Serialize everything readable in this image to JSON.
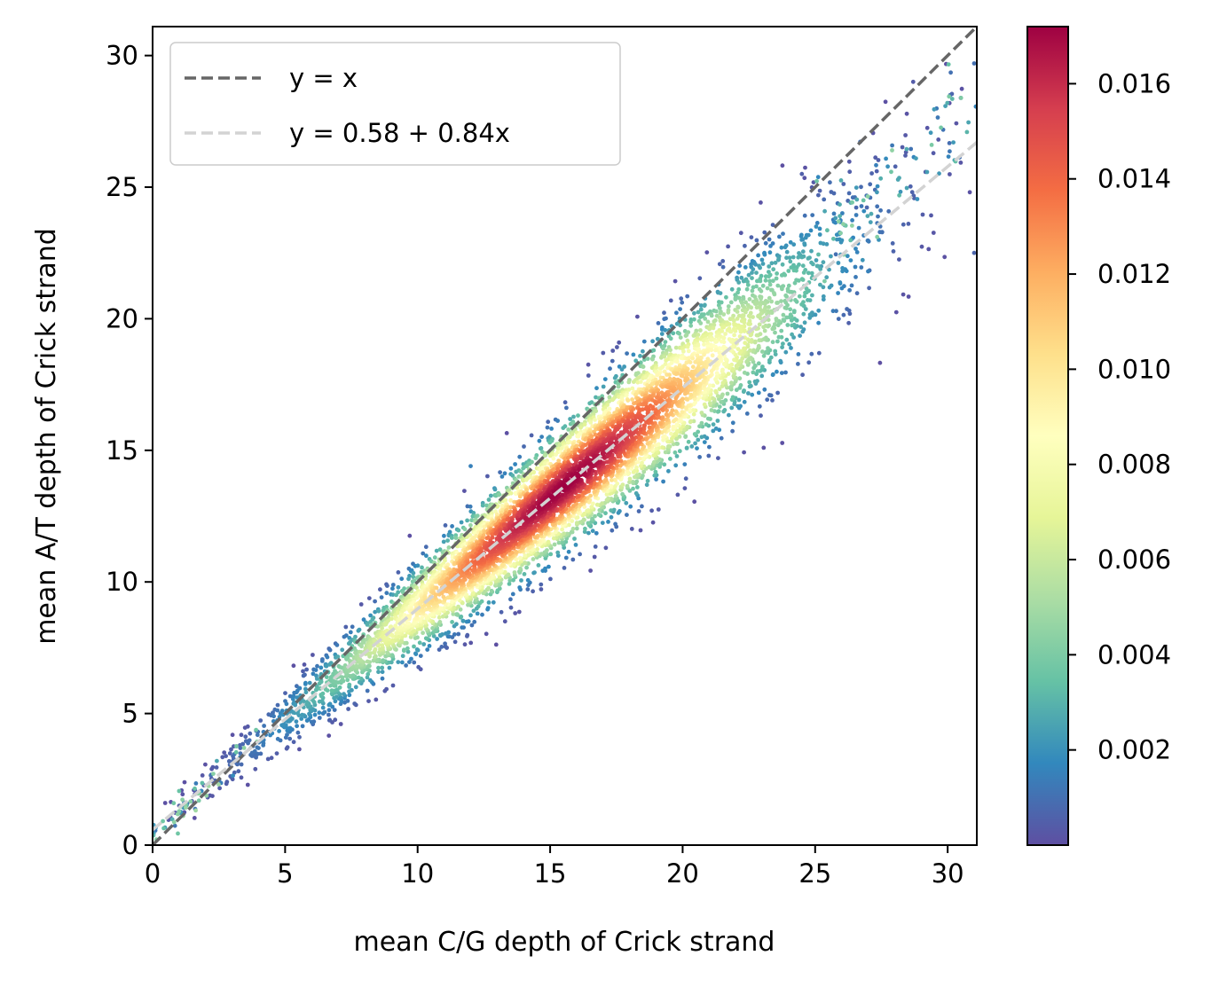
{
  "chart_data": {
    "type": "scatter",
    "xlabel": "mean C/G depth of Crick strand",
    "ylabel": "mean A/T depth of Crick strand",
    "xlim": [
      0,
      31.1
    ],
    "ylim": [
      0,
      31.1
    ],
    "xticks": [
      "0",
      "5",
      "10",
      "15",
      "20",
      "25",
      "30"
    ],
    "yticks": [
      "0",
      "5",
      "10",
      "15",
      "20",
      "25",
      "30"
    ],
    "grid": false,
    "legend_position": "top-left",
    "legend": [
      {
        "label": "y = x",
        "color": "#666666",
        "style": "dashed"
      },
      {
        "label": "y = 0.58 + 0.84x",
        "color": "#d3d3d3",
        "style": "dashed"
      }
    ],
    "lines": [
      {
        "name": "y = x",
        "intercept": 0,
        "slope": 1
      },
      {
        "name": "y = 0.58 + 0.84x",
        "intercept": 0.58,
        "slope": 0.84
      }
    ],
    "colormap": "Spectral_r",
    "colorbar": {
      "min": 0.0,
      "max": 0.0172,
      "ticks": [
        "0.002",
        "0.004",
        "0.006",
        "0.008",
        "0.010",
        "0.012",
        "0.014",
        "0.016"
      ],
      "tick_values": [
        0.002,
        0.004,
        0.006,
        0.008,
        0.01,
        0.012,
        0.014,
        0.016
      ]
    },
    "points_summary": {
      "density_peak_x": 15.5,
      "density_peak_y": 13.6,
      "x_range": [
        0,
        31.1
      ],
      "outliers": [
        {
          "x": 13.3,
          "y": 8.5,
          "density": 0.0003
        },
        {
          "x": 17.0,
          "y": 18.7,
          "density": 0.0004
        },
        {
          "x": 24.5,
          "y": 25.5,
          "density": 0.0005
        },
        {
          "x": 28.7,
          "y": 29.0,
          "density": 0.0004
        },
        {
          "x": 31.0,
          "y": 29.7,
          "density": 0.001
        },
        {
          "x": 27.4,
          "y": 23.0,
          "density": 0.002
        },
        {
          "x": 27.0,
          "y": 21.8,
          "density": 0.0015
        },
        {
          "x": 31.0,
          "y": 22.5,
          "density": 0.0007
        },
        {
          "x": 12.0,
          "y": 14.4,
          "density": 0.0015
        },
        {
          "x": 19.0,
          "y": 13.9,
          "density": 0.0015
        },
        {
          "x": 6.5,
          "y": 6.6,
          "density": 0.002
        }
      ]
    }
  }
}
